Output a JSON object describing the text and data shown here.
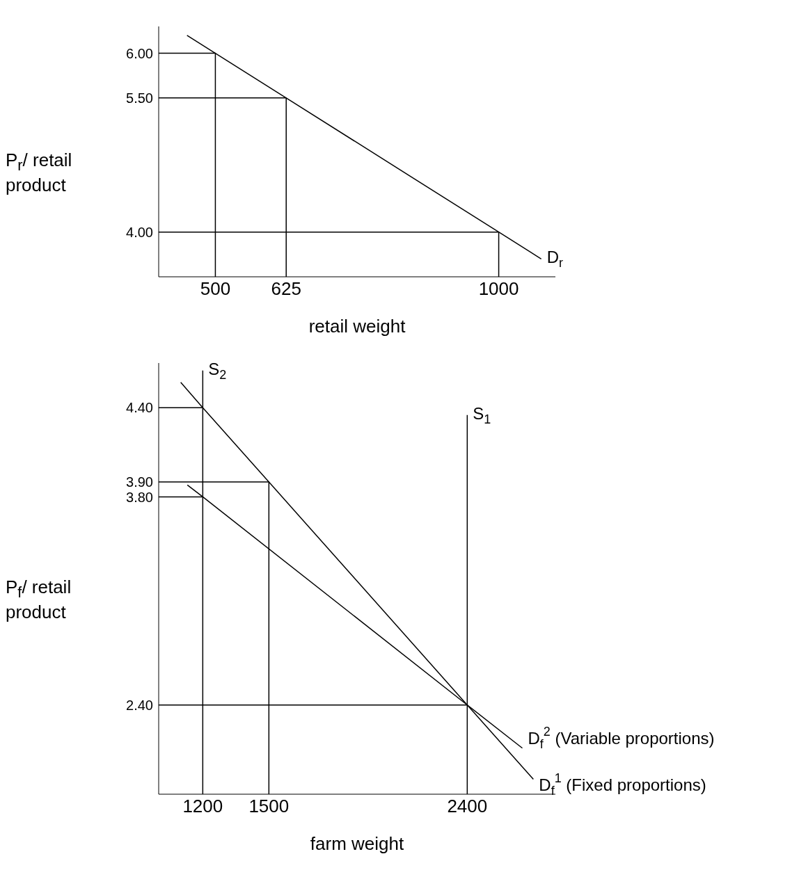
{
  "chart_data": [
    {
      "type": "line",
      "xlabel": "retail weight",
      "ylabel": "P$_{r}$/ retail product",
      "xlim": [
        400,
        1100
      ],
      "ylim": [
        3.5,
        6.3
      ],
      "xticks": [
        500,
        625,
        1000
      ],
      "yticks": [
        {
          "value": 4,
          "label": "4.00"
        },
        {
          "value": 5.5,
          "label": "5.50"
        },
        {
          "value": 6,
          "label": "6.00"
        }
      ],
      "grid": false,
      "legend": false,
      "marker": "none",
      "line_style": "solid",
      "series": [
        {
          "name": "D$_{r}$",
          "color": "#000000",
          "x": [
            450,
            500,
            625,
            1000,
            1075
          ],
          "values": [
            6.2,
            6,
            5.5,
            4,
            3.7
          ]
        },
        {
          "color": "#000000",
          "x": [
            400,
            500,
            500
          ],
          "values": [
            6,
            6,
            3.5
          ]
        },
        {
          "color": "#000000",
          "x": [
            400,
            625,
            625
          ],
          "values": [
            5.5,
            5.5,
            3.5
          ]
        },
        {
          "color": "#000000",
          "x": [
            400,
            1000,
            1000
          ],
          "values": [
            4,
            4,
            3.5
          ]
        }
      ]
    },
    {
      "type": "line",
      "xlabel": "farm weight",
      "ylabel": "P$_{f}$/ retail product",
      "xlim": [
        1000,
        2800
      ],
      "ylim": [
        1.8,
        4.7
      ],
      "xticks": [
        1200,
        1500,
        2400
      ],
      "yticks": [
        {
          "value": 2.4,
          "label": "2.40"
        },
        {
          "value": 3.8,
          "label": "3.80"
        },
        {
          "value": 3.9,
          "label": "3.90"
        },
        {
          "value": 4.4,
          "label": "4.40"
        }
      ],
      "grid": false,
      "legend": false,
      "marker": "none",
      "line_style": "solid",
      "series": [
        {
          "name": "S$_{2}$",
          "color": "#000000",
          "x": [
            1200,
            1200
          ],
          "values": [
            1.8,
            4.65
          ]
        },
        {
          "name": "S$_{1}$",
          "color": "#000000",
          "x": [
            2400,
            2400
          ],
          "values": [
            1.8,
            4.35
          ]
        },
        {
          "name": "D$_{f}$$^{2}$ (Variable proportions)",
          "color": "#000000",
          "x": [
            1130,
            1200,
            2400,
            2650
          ],
          "values": [
            3.88,
            3.8,
            2.4,
            2.11
          ]
        },
        {
          "name": "D$_{f}$$^{1}$ (Fixed proportions)",
          "color": "#000000",
          "x": [
            1100,
            1200,
            1500,
            2400,
            2700
          ],
          "values": [
            4.57,
            4.4,
            3.9,
            2.4,
            1.9
          ]
        },
        {
          "color": "#000000",
          "x": [
            1000,
            1200
          ],
          "values": [
            4.4,
            4.4
          ]
        },
        {
          "color": "#000000",
          "x": [
            1000,
            1500,
            1500
          ],
          "values": [
            3.9,
            3.9,
            1.8
          ]
        },
        {
          "color": "#000000",
          "x": [
            1000,
            1200
          ],
          "values": [
            3.8,
            3.8
          ]
        },
        {
          "color": "#000000",
          "x": [
            1000,
            2400
          ],
          "values": [
            2.4,
            2.4
          ]
        }
      ]
    }
  ]
}
